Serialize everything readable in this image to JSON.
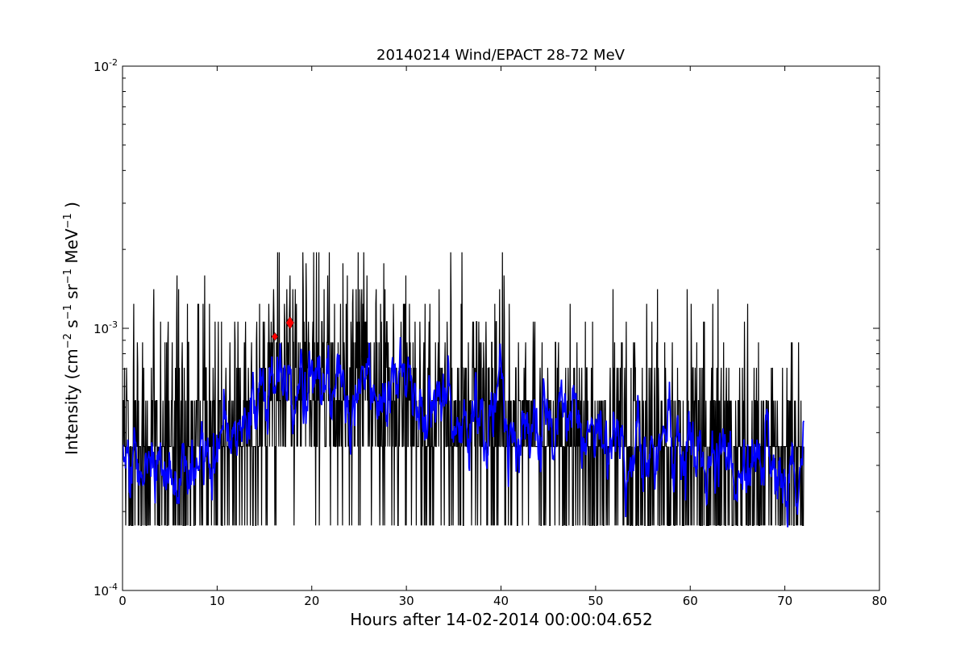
{
  "chart_data": {
    "type": "line",
    "title": "20140214 Wind/EPACT 28-72 MeV",
    "xlabel": "Hours after 14-02-2014 00:00:04.652",
    "ylabel": "Intensity (cm⁻² s⁻¹ sr⁻¹ MeV⁻¹)",
    "ylabel_parts": {
      "prefix": "Intensity (cm",
      "e1": "−2",
      "s": " s",
      "e2": "−1",
      "sr": " sr",
      "e3": "−1",
      "mev": " MeV",
      "e4": "−1",
      "suffix": " )"
    },
    "xlim": [
      0,
      80
    ],
    "ylim": [
      0.0001,
      0.01
    ],
    "yscale": "log",
    "grid": false,
    "xticks": [
      0,
      10,
      20,
      30,
      40,
      50,
      60,
      70,
      80
    ],
    "xtick_labels": [
      "0",
      "10",
      "20",
      "30",
      "40",
      "50",
      "60",
      "70",
      "80"
    ],
    "yticks": [
      0.0001,
      0.001,
      0.01
    ],
    "ytick_labels": [
      {
        "base": "10",
        "exp": "-4"
      },
      {
        "base": "10",
        "exp": "-3"
      },
      {
        "base": "10",
        "exp": "-2"
      }
    ],
    "series": [
      {
        "color": "#000000",
        "x_range": [
          0,
          72
        ],
        "levels": [
          0.000177,
          0.000354,
          0.00053,
          0.000707,
          0.000884,
          0.00106,
          0.00124,
          0.00141,
          0.00159,
          0.00177,
          0.00195
        ],
        "profile": [
          [
            0,
            0.00031
          ],
          [
            8,
            0.00033
          ],
          [
            13,
            0.00045
          ],
          [
            16,
            0.00062
          ],
          [
            19,
            0.00068
          ],
          [
            24,
            0.00058
          ],
          [
            30,
            0.00052
          ],
          [
            38,
            0.00044
          ],
          [
            45,
            0.00038
          ],
          [
            55,
            0.00034
          ],
          [
            65,
            0.00032
          ],
          [
            72,
            0.0003
          ]
        ]
      },
      {
        "color": "#0000ff",
        "x_range": [
          0,
          72
        ],
        "profile": [
          [
            0,
            0.00029
          ],
          [
            8,
            0.00032
          ],
          [
            13,
            0.00042
          ],
          [
            16,
            0.00058
          ],
          [
            19,
            0.00072
          ],
          [
            24,
            0.00062
          ],
          [
            30,
            0.00055
          ],
          [
            38,
            0.00045
          ],
          [
            45,
            0.0004
          ],
          [
            55,
            0.00035
          ],
          [
            65,
            0.00032
          ],
          [
            72,
            0.00029
          ]
        ]
      }
    ],
    "markers": [
      {
        "x": 16.1,
        "y": 0.00093,
        "color": "#ff0000",
        "shape": "diamond",
        "size": "small"
      },
      {
        "x": 17.7,
        "y": 0.00105,
        "color": "#ff0000",
        "shape": "diamond",
        "size": "large"
      }
    ]
  }
}
